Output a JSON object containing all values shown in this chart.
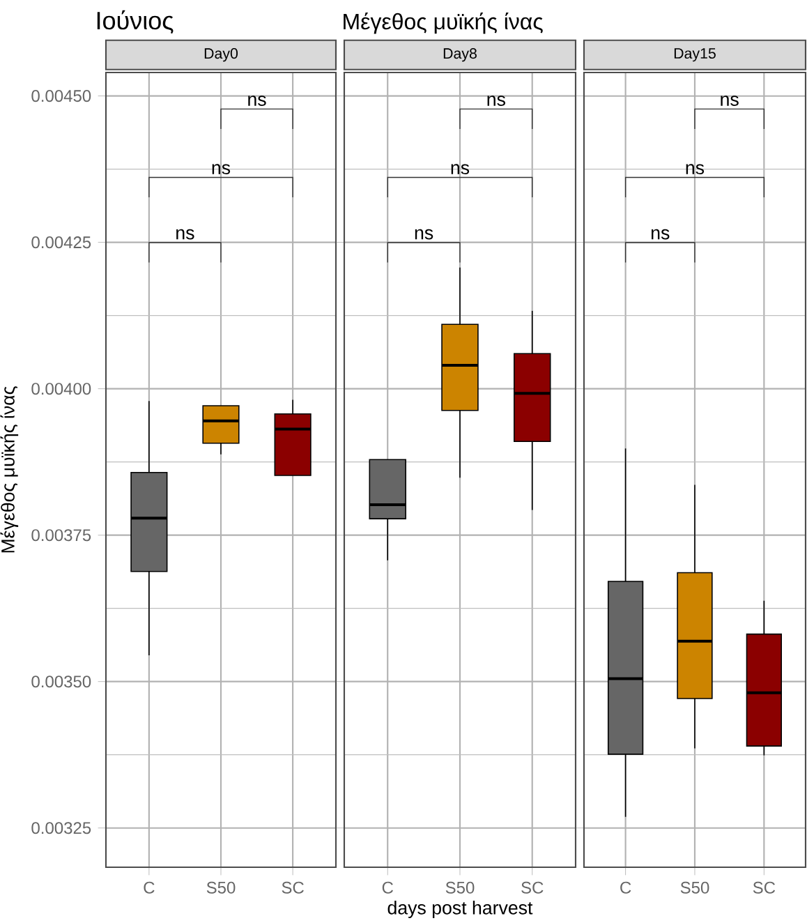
{
  "chart_data": [
    {
      "type": "box",
      "title": "Day0",
      "ylabel": "Μέγεθος μυϊκής ίνας",
      "categories": [
        "C",
        "S50",
        "SC"
      ],
      "colors": [
        "#666666",
        "#cc8400",
        "#8b0000"
      ],
      "boxes": [
        {
          "low": 0.003545,
          "q1": 0.003688,
          "median": 0.003779,
          "q3": 0.003857,
          "high": 0.003979
        },
        {
          "low": 0.003888,
          "q1": 0.003907,
          "median": 0.003945,
          "q3": 0.003971,
          "high": 0.003971
        },
        {
          "low": 0.003852,
          "q1": 0.003852,
          "median": 0.003931,
          "q3": 0.003957,
          "high": 0.003981
        }
      ],
      "ylim": [
        0.003183,
        0.00454
      ],
      "yticks": [
        0.00325,
        {
          "value": 0.0035,
          "label": "0.00350"
        },
        0.00375,
        {
          "value": 0.004,
          "label": "0.00400"
        },
        0.00425,
        {
          "value": 0.0045,
          "label": "0.00450"
        }
      ],
      "grid": true,
      "annotations": [
        "Ιούνιος",
        "Μέγεθος μυϊκής ίνας",
        "ns",
        "ns",
        "ns"
      ]
    },
    {
      "type": "box",
      "title": "Day8",
      "xlabel": "days post harvest",
      "categories": [
        "C",
        "S50",
        "SC"
      ],
      "colors": [
        "#666666",
        "#cc8400",
        "#8b0000"
      ],
      "boxes": [
        {
          "low": 0.003707,
          "q1": 0.003778,
          "median": 0.003802,
          "q3": 0.003879,
          "high": 0.003879
        },
        {
          "low": 0.003848,
          "q1": 0.003963,
          "median": 0.00404,
          "q3": 0.00411,
          "high": 0.004207
        },
        {
          "low": 0.003793,
          "q1": 0.00391,
          "median": 0.003992,
          "q3": 0.00406,
          "high": 0.004133
        }
      ],
      "ylim": [
        0.003183,
        0.00454
      ],
      "yticks": [
        0.00325,
        0.0035,
        0.00375,
        0.004,
        0.00425,
        0.0045
      ],
      "grid": true,
      "tick_labels": "x",
      "annotations": [
        "ns",
        "ns",
        "ns"
      ]
    },
    {
      "type": "box",
      "title": "Day15",
      "categories": [
        "C",
        "S50",
        "SC"
      ],
      "colors": [
        "#666666",
        "#cc8400",
        "#8b0000"
      ],
      "boxes": [
        {
          "low": 0.003269,
          "q1": 0.003376,
          "median": 0.003505,
          "q3": 0.003671,
          "high": 0.003898
        },
        {
          "low": 0.003386,
          "q1": 0.003471,
          "median": 0.003569,
          "q3": 0.003686,
          "high": 0.003836
        },
        {
          "low": 0.003374,
          "q1": 0.00339,
          "median": 0.003481,
          "q3": 0.003581,
          "high": 0.003638
        }
      ],
      "ylim": [
        0.003183,
        0.00454
      ],
      "yticks": [
        0.00325,
        0.0035,
        0.00375,
        0.004,
        0.00425,
        0.0045
      ],
      "grid": true,
      "tick_labels": "x",
      "annotations": [
        "ns",
        "ns",
        "ns"
      ]
    }
  ]
}
